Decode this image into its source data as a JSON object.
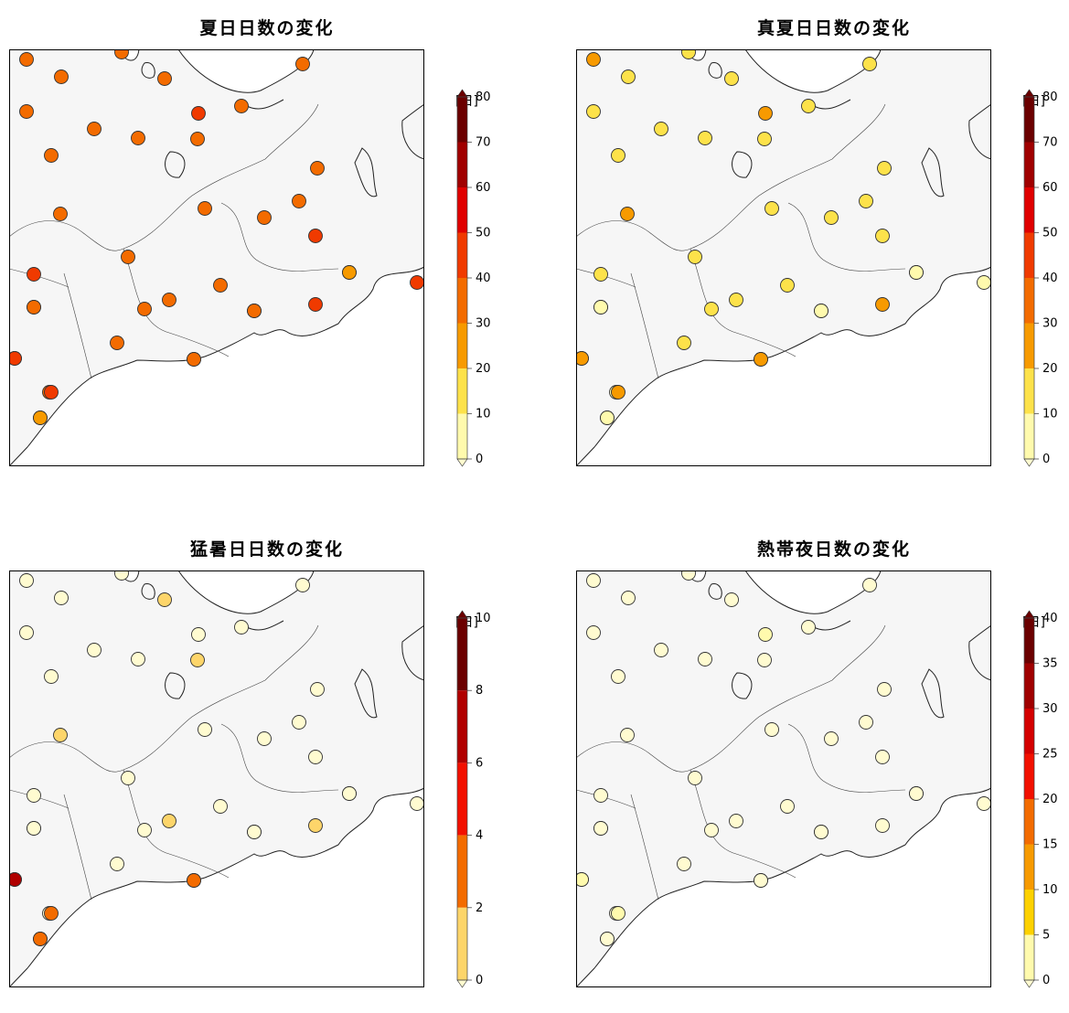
{
  "panels": [
    {
      "title": "夏日日数の変化",
      "unit": "[日]",
      "colorbar": {
        "ticks": [
          "80",
          "70",
          "60",
          "50",
          "40",
          "30",
          "20",
          "10",
          "0"
        ],
        "colors": [
          "#6b0000",
          "#a00000",
          "#e00000",
          "#f03a00",
          "#f36b00",
          "#f79a00",
          "#fde24a",
          "#fffaad"
        ]
      },
      "stations": [
        40,
        35,
        40,
        40,
        40,
        35,
        40,
        50,
        40,
        40,
        40,
        40,
        40,
        40,
        40,
        40,
        50,
        40,
        40,
        40,
        50,
        40,
        40,
        40,
        50,
        50,
        40,
        50,
        50,
        40,
        40,
        40,
        35,
        25,
        40,
        30,
        50,
        50,
        40,
        25
      ]
    },
    {
      "title": "真夏日日数の変化",
      "unit": "[日]",
      "colorbar": {
        "ticks": [
          "80",
          "70",
          "60",
          "50",
          "40",
          "30",
          "20",
          "10",
          "0"
        ],
        "colors": [
          "#6b0000",
          "#a00000",
          "#e00000",
          "#f03a00",
          "#f36b00",
          "#f79a00",
          "#fde24a",
          "#fffaad"
        ]
      },
      "stations": [
        25,
        15,
        15,
        15,
        15,
        15,
        15,
        25,
        15,
        15,
        15,
        15,
        15,
        15,
        15,
        15,
        15,
        25,
        15,
        15,
        15,
        15,
        15,
        15,
        5,
        15,
        15,
        25,
        15,
        15,
        5,
        5,
        15,
        5,
        5,
        5,
        25,
        25,
        25,
        5
      ]
    },
    {
      "title": "猛暑日日数の変化",
      "unit": "[日]",
      "colorbar": {
        "ticks": [
          "10",
          "8",
          "6",
          "4",
          "2",
          "0"
        ],
        "colors": [
          "#6b0000",
          "#b00000",
          "#f21000",
          "#f36b00",
          "#fdd56a",
          "#fffbd0"
        ]
      },
      "stations": [
        1,
        1,
        1,
        3,
        1,
        1,
        1,
        1,
        1,
        1,
        1,
        3,
        1,
        1,
        1,
        1,
        1,
        3,
        1,
        1,
        1,
        1,
        3,
        1,
        1,
        3,
        3,
        3,
        1,
        1,
        1,
        1,
        1,
        1,
        1,
        1,
        5,
        7,
        5,
        5
      ]
    },
    {
      "title": "熱帯夜日数の変化",
      "unit": "[日]",
      "colorbar": {
        "ticks": [
          "40",
          "35",
          "30",
          "25",
          "20",
          "15",
          "10",
          "5",
          "0"
        ],
        "colors": [
          "#6b0000",
          "#a00000",
          "#d40000",
          "#f21000",
          "#f36b00",
          "#f79a00",
          "#fdd100",
          "#fffaad",
          "#fffbd0"
        ]
      },
      "stations": [
        2,
        2,
        2,
        2,
        2,
        2,
        2,
        7,
        2,
        2,
        2,
        2,
        2,
        2,
        2,
        2,
        2,
        2,
        2,
        2,
        2,
        2,
        2,
        2,
        2,
        2,
        2,
        2,
        2,
        2,
        2,
        2,
        2,
        2,
        2,
        2,
        7,
        7,
        2,
        2
      ]
    }
  ]
}
